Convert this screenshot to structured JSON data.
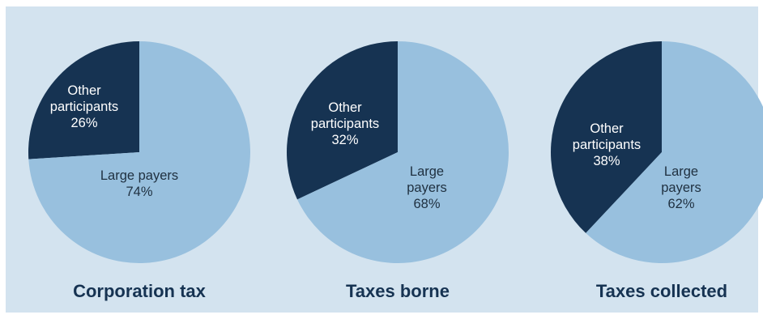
{
  "colors": {
    "background": "#d3e3ef",
    "large_payers": "#98c0de",
    "other_participants": "#163352",
    "title_text": "#163352",
    "light_label_text": "#ffffff",
    "dark_label_text": "#1f3040"
  },
  "chart_data": [
    {
      "type": "pie",
      "title": "Corporation tax",
      "slices": [
        {
          "label": "Other participants",
          "value": 26,
          "display": [
            "Other",
            "participants",
            "26%"
          ]
        },
        {
          "label": "Large payers",
          "value": 74,
          "display": [
            "Large payers",
            "74%"
          ]
        }
      ]
    },
    {
      "type": "pie",
      "title": "Taxes borne",
      "slices": [
        {
          "label": "Other participants",
          "value": 32,
          "display": [
            "Other",
            "participants",
            "32%"
          ]
        },
        {
          "label": "Large payers",
          "value": 68,
          "display": [
            "Large",
            "payers",
            "68%"
          ]
        }
      ]
    },
    {
      "type": "pie",
      "title": "Taxes collected",
      "slices": [
        {
          "label": "Other participants",
          "value": 38,
          "display": [
            "Other",
            "participants",
            "38%"
          ]
        },
        {
          "label": "Large payers",
          "value": 62,
          "display": [
            "Large",
            "payers",
            "62%"
          ]
        }
      ]
    }
  ]
}
